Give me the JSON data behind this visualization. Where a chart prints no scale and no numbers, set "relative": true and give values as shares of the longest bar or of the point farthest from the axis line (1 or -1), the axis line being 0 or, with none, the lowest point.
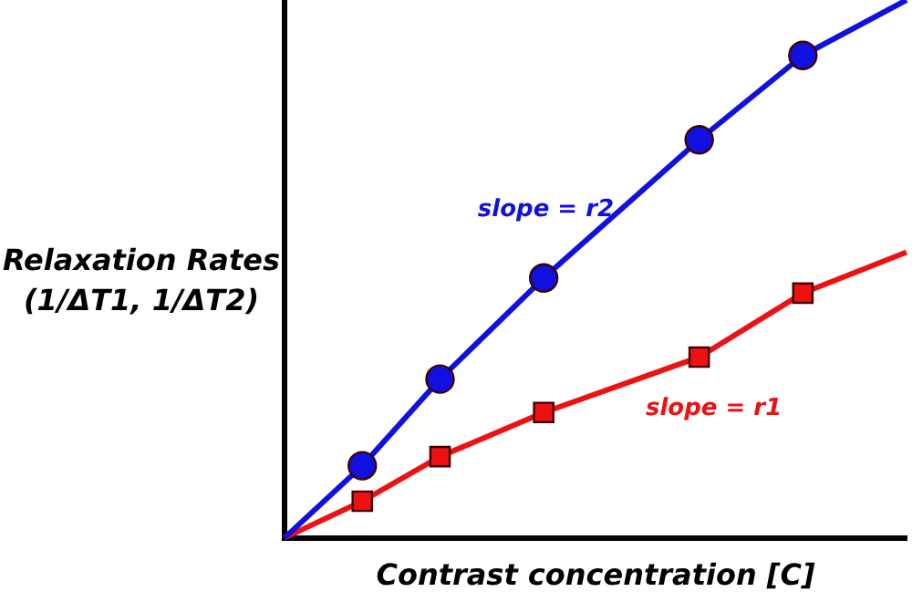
{
  "chart_data": {
    "type": "line",
    "relative": true,
    "xlabel": "Contrast concentration [C]",
    "ylabel": "Relaxation Rates (1/ΔT1, 1/ΔT2)",
    "grid": false,
    "legend": false,
    "categories": [
      null,
      null,
      null,
      null,
      null,
      null,
      null,
      null,
      null,
      null,
      null,
      null,
      null,
      null,
      null,
      null,
      null,
      null,
      null,
      null,
      null,
      null,
      null,
      null,
      null
    ],
    "series": [
      {
        "marker": "circle",
        "color": "#1010e0",
        "values": [
          0,
          null,
          null,
          0.134,
          null,
          null,
          0.295,
          null,
          null,
          null,
          0.483,
          null,
          null,
          null,
          null,
          null,
          0.74,
          null,
          null,
          null,
          0.897,
          null,
          null,
          null,
          1
        ]
      },
      {
        "marker": "square",
        "color": "#ee1111",
        "values": [
          0,
          null,
          null,
          0.068,
          null,
          null,
          0.151,
          null,
          null,
          null,
          0.233,
          null,
          null,
          null,
          null,
          null,
          0.336,
          null,
          null,
          null,
          0.455,
          null,
          null,
          null,
          0.531
        ]
      }
    ],
    "annotations": [
      "slope = r2",
      "slope = r1"
    ]
  }
}
